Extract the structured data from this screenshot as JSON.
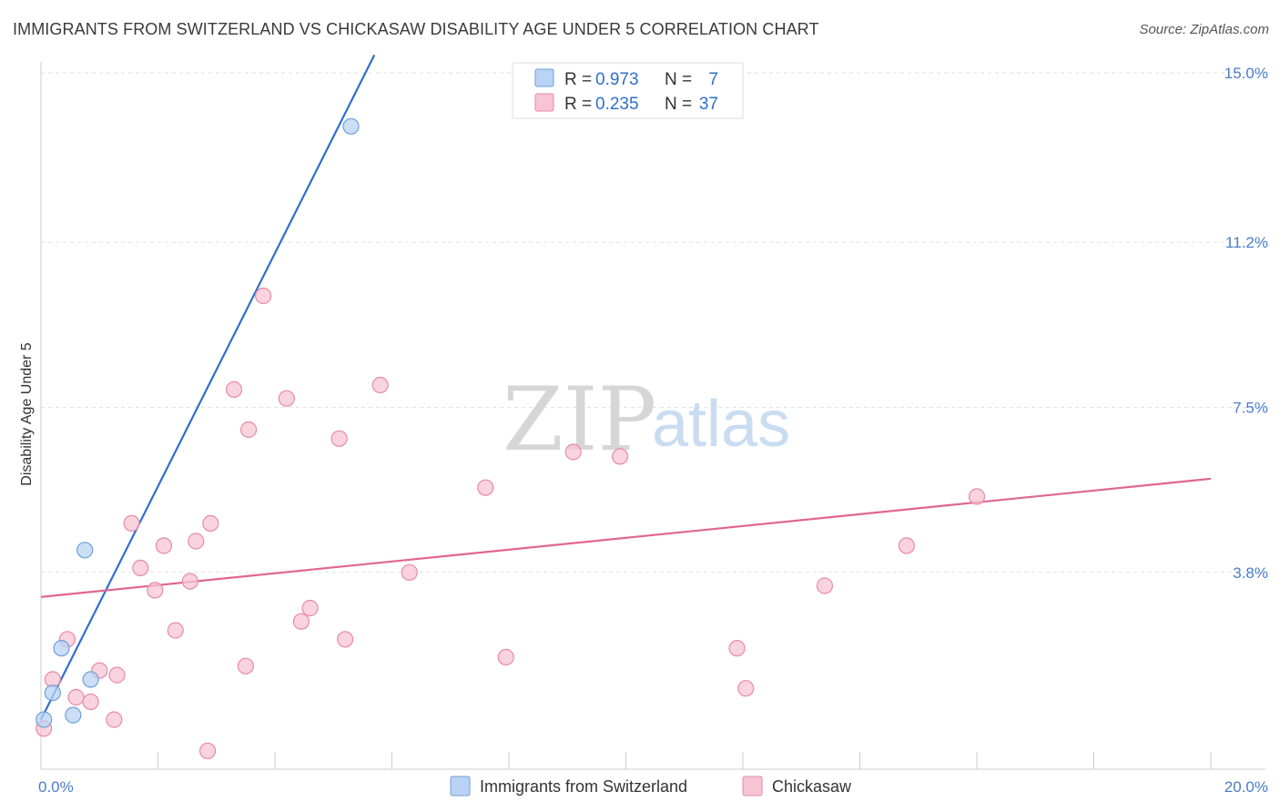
{
  "title": "IMMIGRANTS FROM SWITZERLAND VS CHICKASAW DISABILITY AGE UNDER 5 CORRELATION CHART",
  "source": "Source: ZipAtlas.com",
  "watermark": {
    "zip": "ZIP",
    "atlas": "atlas"
  },
  "legend": {
    "r_label": "R =",
    "n_label": "N =",
    "rows": [
      {
        "r": "0.973",
        "n": "7",
        "fill": "#b9d3f5",
        "stroke": "#6f9fd8"
      },
      {
        "r": "0.235",
        "n": "37",
        "fill": "#f7c4d3",
        "stroke": "#e88aa8"
      }
    ]
  },
  "chart_data": {
    "type": "scatter",
    "title": "IMMIGRANTS FROM SWITZERLAND VS CHICKASAW DISABILITY AGE UNDER 5 CORRELATION CHART",
    "xlabel": "",
    "ylabel": "Disability Age Under 5",
    "xlim": [
      0,
      20
    ],
    "ylim": [
      0,
      15
    ],
    "x_tick_labels": [
      "0.0%",
      "20.0%"
    ],
    "y_ticks": [
      3.8,
      7.5,
      11.2,
      15.0
    ],
    "y_tick_labels": [
      "3.8%",
      "7.5%",
      "11.2%",
      "15.0%"
    ],
    "grid": true,
    "legend_position": "top-center",
    "series": [
      {
        "name": "Immigrants from Switzerland",
        "color": "#6f9fd8",
        "fill": "#b9d3f5",
        "line_color": "#2f6fcc",
        "points": [
          [
            0.05,
            0.5
          ],
          [
            0.2,
            1.1
          ],
          [
            0.55,
            0.6
          ],
          [
            0.35,
            2.1
          ],
          [
            0.85,
            1.4
          ],
          [
            0.75,
            4.3
          ],
          [
            5.3,
            13.8
          ]
        ],
        "trend": {
          "x": [
            0.0,
            5.7
          ],
          "y": [
            0.5,
            15.4
          ]
        }
      },
      {
        "name": "Chickasaw",
        "color": "#e88aa8",
        "fill": "#f7c4d3",
        "line_color": "#e06690",
        "points": [
          [
            0.05,
            0.3
          ],
          [
            0.2,
            1.4
          ],
          [
            0.45,
            2.3
          ],
          [
            0.6,
            1.0
          ],
          [
            0.85,
            0.9
          ],
          [
            1.0,
            1.6
          ],
          [
            1.3,
            1.5
          ],
          [
            1.25,
            0.5
          ],
          [
            1.55,
            4.9
          ],
          [
            1.7,
            3.9
          ],
          [
            1.95,
            3.4
          ],
          [
            2.1,
            4.4
          ],
          [
            2.3,
            2.5
          ],
          [
            2.55,
            3.6
          ],
          [
            2.65,
            4.5
          ],
          [
            2.9,
            4.9
          ],
          [
            3.3,
            7.9
          ],
          [
            2.85,
            -0.2
          ],
          [
            3.5,
            1.7
          ],
          [
            3.55,
            7.0
          ],
          [
            3.8,
            10.0
          ],
          [
            4.2,
            7.7
          ],
          [
            4.45,
            2.7
          ],
          [
            4.6,
            3.0
          ],
          [
            5.1,
            6.8
          ],
          [
            5.2,
            2.3
          ],
          [
            5.8,
            8.0
          ],
          [
            6.3,
            3.8
          ],
          [
            7.6,
            5.7
          ],
          [
            7.95,
            1.9
          ],
          [
            9.1,
            6.5
          ],
          [
            9.9,
            6.4
          ],
          [
            11.9,
            2.1
          ],
          [
            12.05,
            1.2
          ],
          [
            13.4,
            3.5
          ],
          [
            14.8,
            4.4
          ],
          [
            16.0,
            5.5
          ]
        ],
        "trend": {
          "x": [
            0.0,
            20.0
          ],
          "y": [
            3.25,
            5.9
          ]
        }
      }
    ]
  }
}
